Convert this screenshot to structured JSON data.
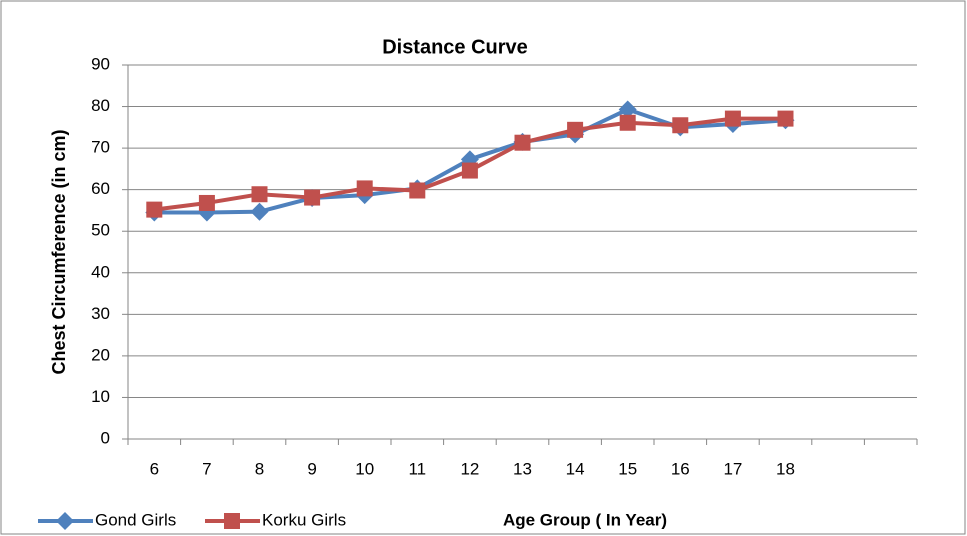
{
  "chart_data": {
    "type": "line",
    "title": "Distance Curve",
    "x_label": "Age Group ( In Year)",
    "y_label": "Chest Circumference (in cm)",
    "categories": [
      "6",
      "7",
      "8",
      "9",
      "10",
      "11",
      "12",
      "13",
      "14",
      "15",
      "16",
      "17",
      "18",
      null,
      null
    ],
    "series": [
      {
        "name": "Gond Girls",
        "color": "#4f81bd",
        "marker": "diamond",
        "values": [
          54.5,
          54.5,
          54.7,
          58,
          58.7,
          60.3,
          67.3,
          71.5,
          73.3,
          79.3,
          75,
          75.8,
          76.7,
          null,
          null
        ]
      },
      {
        "name": "Korku Girls",
        "color": "#c0504d",
        "marker": "square",
        "values": [
          55.2,
          56.8,
          58.9,
          58.1,
          60.3,
          59.8,
          64.6,
          71.3,
          74.4,
          76.1,
          75.5,
          77.1,
          77.1,
          null,
          null
        ]
      }
    ],
    "ylim": [
      0,
      90
    ],
    "yticks": [
      0,
      10,
      20,
      30,
      40,
      50,
      60,
      70,
      80,
      90
    ],
    "grid": true,
    "legend": "bottom-left"
  }
}
